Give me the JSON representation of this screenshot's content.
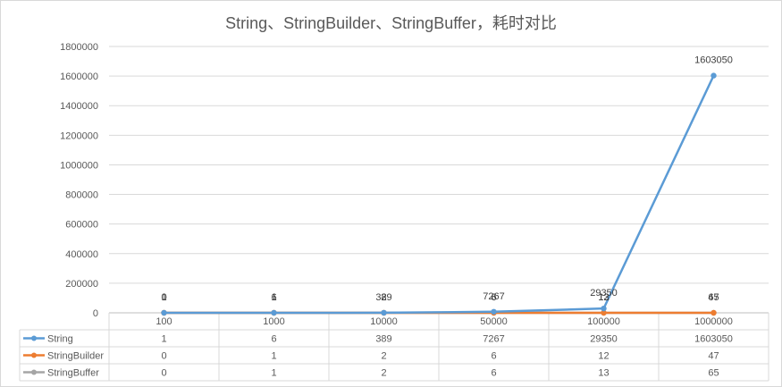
{
  "chart_data": {
    "type": "line",
    "title": "String、StringBuilder、StringBuffer，耗时对比",
    "xlabel": "",
    "ylabel": "",
    "categories": [
      "100",
      "1000",
      "10000",
      "50000",
      "100000",
      "1000000"
    ],
    "series": [
      {
        "name": "String",
        "color": "#5B9BD5",
        "values": [
          1,
          6,
          389,
          7267,
          29350,
          1603050
        ]
      },
      {
        "name": "StringBuilder",
        "color": "#ED7D31",
        "values": [
          0,
          1,
          2,
          6,
          12,
          47
        ]
      },
      {
        "name": "StringBuffer",
        "color": "#A5A5A5",
        "values": [
          0,
          1,
          2,
          6,
          13,
          65
        ]
      }
    ],
    "ylim": [
      0,
      1800000
    ],
    "yticks": [
      0,
      200000,
      400000,
      600000,
      800000,
      1000000,
      1200000,
      1400000,
      1600000,
      1800000
    ],
    "grid": true,
    "legend": "data-table",
    "data_labels": true
  }
}
